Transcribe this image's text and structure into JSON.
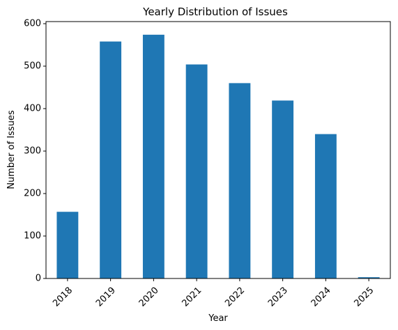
{
  "chart_data": {
    "type": "bar",
    "title": "Yearly Distribution of Issues",
    "xlabel": "Year",
    "ylabel": "Number of Issues",
    "categories": [
      "2018",
      "2019",
      "2020",
      "2021",
      "2022",
      "2023",
      "2024",
      "2025"
    ],
    "values": [
      157,
      558,
      574,
      504,
      460,
      419,
      340,
      3
    ],
    "ylim": [
      0,
      600
    ],
    "yticks": [
      0,
      100,
      200,
      300,
      400,
      500,
      600
    ],
    "bar_color": "#1f77b4",
    "grid": false,
    "legend": "none",
    "xtick_rotation": 45
  }
}
